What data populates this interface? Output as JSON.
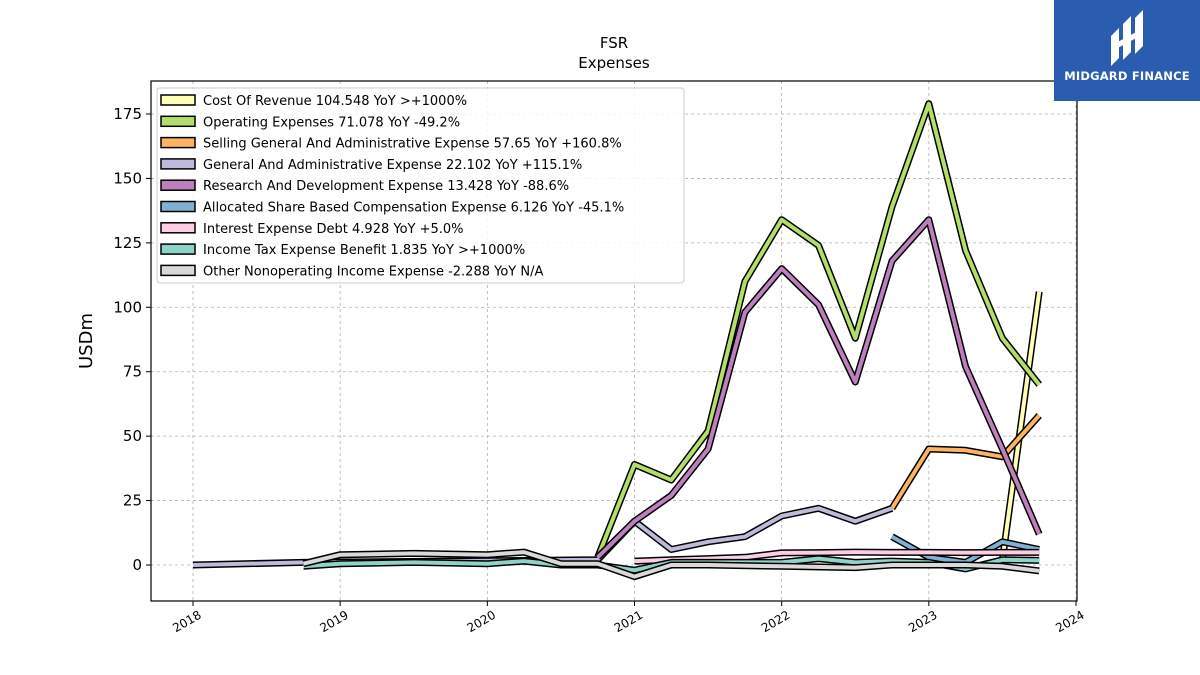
{
  "brand": {
    "name": "MIDGARD FINANCE",
    "color": "#2a5db0"
  },
  "chart_data": {
    "type": "line",
    "title": "FSR",
    "subtitle": "Expenses",
    "xlabel": "",
    "ylabel": "USDm",
    "xlim": [
      2017.8,
      2024.0
    ],
    "ylim": [
      -20,
      188
    ],
    "x_ticks": [
      2018,
      2019,
      2020,
      2021,
      2022,
      2023,
      2024
    ],
    "y_ticks": [
      0,
      25,
      50,
      75,
      100,
      125,
      150,
      175
    ],
    "grid": true,
    "legend_position": "top-left",
    "series": [
      {
        "name": "Cost Of Revenue  104.548 YoY >+1000%",
        "color": "#ffffb3",
        "points": [
          [
            2023.5,
            2.0
          ],
          [
            2023.75,
            106.0
          ]
        ]
      },
      {
        "name": "Operating Expenses  71.078 YoY -49.2%",
        "color": "#b3de69",
        "points": [
          [
            2020.75,
            3.0
          ],
          [
            2021.0,
            39.0
          ],
          [
            2021.25,
            33.0
          ],
          [
            2021.5,
            52.0
          ],
          [
            2021.75,
            110.0
          ],
          [
            2022.0,
            134.0
          ],
          [
            2022.25,
            124.0
          ],
          [
            2022.5,
            88.0
          ],
          [
            2022.75,
            139.0
          ],
          [
            2023.0,
            179.0
          ],
          [
            2023.25,
            122.0
          ],
          [
            2023.5,
            88.0
          ],
          [
            2023.75,
            70.0
          ]
        ]
      },
      {
        "name": "Selling General And Administrative Expense  57.65 YoY +160.8%",
        "color": "#fdb462",
        "points": [
          [
            2022.75,
            22.0
          ],
          [
            2023.0,
            45.0
          ],
          [
            2023.25,
            44.5
          ],
          [
            2023.5,
            42.0
          ],
          [
            2023.75,
            58.0
          ]
        ]
      },
      {
        "name": "General And Administrative Expense  22.102 YoY +115.1%",
        "color": "#bebada",
        "points": [
          [
            2018.0,
            0.0
          ],
          [
            2018.75,
            1.0
          ],
          [
            2020.75,
            2.0
          ],
          [
            2021.0,
            17.0
          ],
          [
            2021.25,
            6.0
          ],
          [
            2021.5,
            9.0
          ],
          [
            2021.75,
            11.0
          ],
          [
            2022.0,
            19.0
          ],
          [
            2022.25,
            22.0
          ],
          [
            2022.5,
            17.0
          ],
          [
            2022.75,
            22.0
          ]
        ]
      },
      {
        "name": "Research And Development Expense  13.428 YoY -88.6%",
        "color": "#bc80bd",
        "points": [
          [
            2020.75,
            3.0
          ],
          [
            2021.0,
            17.0
          ],
          [
            2021.25,
            27.0
          ],
          [
            2021.5,
            45.0
          ],
          [
            2021.75,
            98.0
          ],
          [
            2022.0,
            115.0
          ],
          [
            2022.25,
            101.0
          ],
          [
            2022.5,
            71.0
          ],
          [
            2022.75,
            118.0
          ],
          [
            2023.0,
            134.0
          ],
          [
            2023.25,
            77.0
          ],
          [
            2023.5,
            45.0
          ],
          [
            2023.75,
            12.0
          ]
        ]
      },
      {
        "name": "Allocated Share Based Compensation Expense  6.126 YoY -45.1%",
        "color": "#80b1d3",
        "points": [
          [
            2022.75,
            11.0
          ],
          [
            2023.0,
            3.0
          ],
          [
            2023.25,
            1.0
          ],
          [
            2023.5,
            9.0
          ],
          [
            2023.75,
            6.0
          ]
        ]
      },
      {
        "name": "Interest Expense Debt  4.928 YoY +5.0%",
        "color": "#fccde5",
        "points": [
          [
            2021.0,
            1.5
          ],
          [
            2021.25,
            2.0
          ],
          [
            2021.5,
            2.5
          ],
          [
            2021.75,
            3.0
          ],
          [
            2022.0,
            4.7
          ],
          [
            2022.25,
            4.8
          ],
          [
            2022.5,
            5.0
          ],
          [
            2022.75,
            4.9
          ],
          [
            2023.0,
            4.9
          ],
          [
            2023.25,
            4.8
          ],
          [
            2023.5,
            4.9
          ],
          [
            2023.75,
            4.9
          ]
        ]
      },
      {
        "name": "Income Tax Expense Benefit  1.835 YoY >+1000%",
        "color": "#8dd3c7",
        "points": [
          [
            2018.75,
            -0.5
          ],
          [
            2019.0,
            0.5
          ],
          [
            2019.5,
            1.0
          ],
          [
            2020.0,
            0.5
          ],
          [
            2020.25,
            1.5
          ],
          [
            2020.5,
            0.0
          ],
          [
            2020.75,
            0.0
          ],
          [
            2021.0,
            -2.0
          ],
          [
            2021.25,
            1.0
          ],
          [
            2022.0,
            1.0
          ],
          [
            2022.25,
            2.5
          ],
          [
            2022.5,
            1.0
          ],
          [
            2022.75,
            1.5
          ],
          [
            2023.0,
            1.0
          ],
          [
            2023.25,
            -1.5
          ],
          [
            2023.5,
            2.0
          ],
          [
            2023.75,
            1.8
          ]
        ]
      },
      {
        "name": "Other Nonoperating Income Expense  -2.288 YoY N/A",
        "color": "#d9d9d9",
        "points": [
          [
            2018.75,
            0.5
          ],
          [
            2019.0,
            4.0
          ],
          [
            2019.5,
            4.5
          ],
          [
            2020.0,
            4.0
          ],
          [
            2020.25,
            5.0
          ],
          [
            2020.5,
            0.5
          ],
          [
            2020.75,
            0.5
          ],
          [
            2021.0,
            -4.5
          ],
          [
            2021.25,
            0.0
          ],
          [
            2021.5,
            0.0
          ],
          [
            2022.0,
            -0.5
          ],
          [
            2022.5,
            -1.0
          ],
          [
            2022.75,
            0.0
          ],
          [
            2023.0,
            0.0
          ],
          [
            2023.25,
            0.0
          ],
          [
            2023.5,
            -0.5
          ],
          [
            2023.75,
            -2.3
          ]
        ]
      }
    ]
  }
}
